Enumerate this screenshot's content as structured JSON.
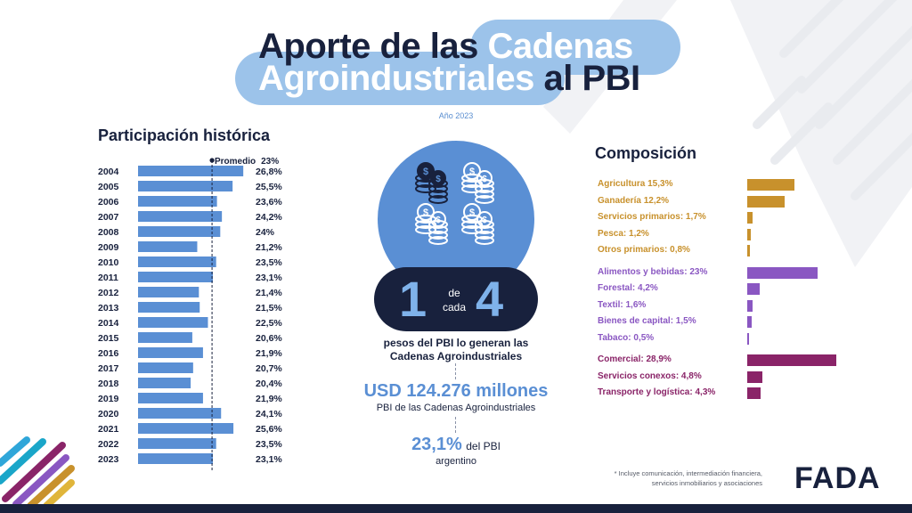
{
  "title": {
    "line1_dark": "Aporte de las",
    "line1_highlight": "Cadenas",
    "line2_highlight": "Agroindustriales",
    "line2_dark": "al PBI"
  },
  "year_label": "Año 2023",
  "colors": {
    "navy": "#18213d",
    "blue": "#5a8fd4",
    "light_blue": "#9cc3ea",
    "primary": "#c8912c",
    "industry": "#8a57c2",
    "services": "#8a2468"
  },
  "chart_data": [
    {
      "type": "bar",
      "orientation": "horizontal",
      "title": "Participación histórica",
      "categories": [
        "2004",
        "2005",
        "2006",
        "2007",
        "2008",
        "2009",
        "2010",
        "2011",
        "2012",
        "2013",
        "2014",
        "2015",
        "2016",
        "2017",
        "2018",
        "2019",
        "2020",
        "2021",
        "2022",
        "2023"
      ],
      "values": [
        26.8,
        25.5,
        23.6,
        24.2,
        24,
        21.2,
        23.5,
        23.1,
        21.4,
        21.5,
        22.5,
        20.6,
        21.9,
        20.7,
        20.4,
        21.9,
        24.1,
        25.6,
        23.5,
        23.1
      ],
      "value_labels": [
        "26,8%",
        "25,5%",
        "23,6%",
        "24,2%",
        "24%",
        "21,2%",
        "23,5%",
        "23,1%",
        "21,4%",
        "21,5%",
        "22,5%",
        "20,6%",
        "21,9%",
        "20,7%",
        "20,4%",
        "21,9%",
        "24,1%",
        "25,6%",
        "23,5%",
        "23,1%"
      ],
      "xlim": [
        14,
        27
      ],
      "reference_line": {
        "label": "Promedio",
        "value": 23,
        "value_label": "23%"
      },
      "color": "#5a8fd4"
    },
    {
      "type": "bar",
      "orientation": "horizontal",
      "title": "Composición",
      "xlim": [
        0,
        29
      ],
      "groups": [
        {
          "color": "#c8912c",
          "items": [
            {
              "label": "Agricultura 15,3%",
              "value": 15.3
            },
            {
              "label": "Ganadería 12,2%",
              "value": 12.2
            },
            {
              "label": "Servicios primarios: 1,7%",
              "value": 1.7
            },
            {
              "label": "Pesca: 1,2%",
              "value": 1.2
            },
            {
              "label": "Otros primarios: 0,8%",
              "value": 0.8
            }
          ]
        },
        {
          "color": "#8a57c2",
          "items": [
            {
              "label": "Alimentos y bebidas: 23%",
              "value": 23
            },
            {
              "label": "Forestal: 4,2%",
              "value": 4.2
            },
            {
              "label": "Textil: 1,6%",
              "value": 1.6
            },
            {
              "label": "Bienes de capital: 1,5%",
              "value": 1.5
            },
            {
              "label": "Tabaco: 0,5%",
              "value": 0.5
            }
          ]
        },
        {
          "color": "#8a2468",
          "items": [
            {
              "label": "Comercial: 28,9%",
              "value": 28.9
            },
            {
              "label": "Servicios conexos: 4,8%",
              "value": 4.8
            },
            {
              "label": "Transporte y logística: 4,3%",
              "value": 4.3
            }
          ]
        }
      ]
    }
  ],
  "center": {
    "icon": "coin-stack-icon",
    "big_left": "1",
    "de": "de",
    "cada": "cada",
    "big_right": "4",
    "caption_line1": "pesos del PBI lo generan las",
    "caption_line2": "Cadenas Agroindustriales",
    "usd_value": "USD 124.276 millones",
    "usd_caption": "PBI de las Cadenas Agroindustriales",
    "pct_value": "23,1%",
    "pct_tail": "del PBI",
    "pct_caption": "argentino"
  },
  "footnote": {
    "line1": "* Incluye comunicación, intermediación financiera,",
    "line2": "servicios inmobiliarios y asociaciones"
  },
  "logo": "FADA"
}
